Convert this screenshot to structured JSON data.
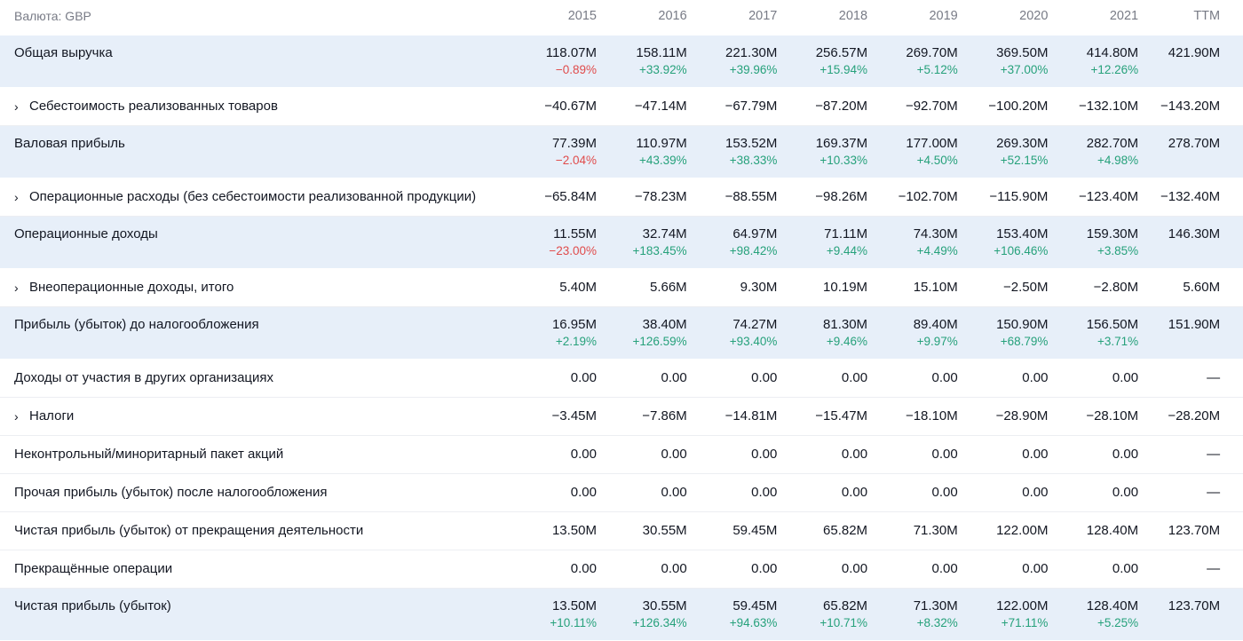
{
  "header": {
    "currency_label": "Валюта: GBP",
    "years": [
      "2015",
      "2016",
      "2017",
      "2018",
      "2019",
      "2020",
      "2021",
      "TTM"
    ]
  },
  "rows": [
    {
      "label": "Общая выручка",
      "expandable": false,
      "shaded": true,
      "values": [
        "118.07M",
        "158.11M",
        "221.30M",
        "256.57M",
        "269.70M",
        "369.50M",
        "414.80M",
        "421.90M"
      ],
      "changes": [
        "−0.89%",
        "+33.92%",
        "+39.96%",
        "+15.94%",
        "+5.12%",
        "+37.00%",
        "+12.26%",
        ""
      ]
    },
    {
      "label": "Себестоимость реализованных товаров",
      "expandable": true,
      "shaded": false,
      "values": [
        "−40.67M",
        "−47.14M",
        "−67.79M",
        "−87.20M",
        "−92.70M",
        "−100.20M",
        "−132.10M",
        "−143.20M"
      ],
      "changes": null
    },
    {
      "label": "Валовая прибыль",
      "expandable": false,
      "shaded": true,
      "values": [
        "77.39M",
        "110.97M",
        "153.52M",
        "169.37M",
        "177.00M",
        "269.30M",
        "282.70M",
        "278.70M"
      ],
      "changes": [
        "−2.04%",
        "+43.39%",
        "+38.33%",
        "+10.33%",
        "+4.50%",
        "+52.15%",
        "+4.98%",
        ""
      ]
    },
    {
      "label": "Операционные расходы (без себестоимости реализованной продукции)",
      "expandable": true,
      "shaded": false,
      "values": [
        "−65.84M",
        "−78.23M",
        "−88.55M",
        "−98.26M",
        "−102.70M",
        "−115.90M",
        "−123.40M",
        "−132.40M"
      ],
      "changes": null
    },
    {
      "label": "Операционные доходы",
      "expandable": false,
      "shaded": true,
      "values": [
        "11.55M",
        "32.74M",
        "64.97M",
        "71.11M",
        "74.30M",
        "153.40M",
        "159.30M",
        "146.30M"
      ],
      "changes": [
        "−23.00%",
        "+183.45%",
        "+98.42%",
        "+9.44%",
        "+4.49%",
        "+106.46%",
        "+3.85%",
        ""
      ]
    },
    {
      "label": "Внеоперационные доходы, итого",
      "expandable": true,
      "shaded": false,
      "values": [
        "5.40M",
        "5.66M",
        "9.30M",
        "10.19M",
        "15.10M",
        "−2.50M",
        "−2.80M",
        "5.60M"
      ],
      "changes": null
    },
    {
      "label": "Прибыль (убыток) до налогообложения",
      "expandable": false,
      "shaded": true,
      "values": [
        "16.95M",
        "38.40M",
        "74.27M",
        "81.30M",
        "89.40M",
        "150.90M",
        "156.50M",
        "151.90M"
      ],
      "changes": [
        "+2.19%",
        "+126.59%",
        "+93.40%",
        "+9.46%",
        "+9.97%",
        "+68.79%",
        "+3.71%",
        ""
      ]
    },
    {
      "label": "Доходы от участия в других организациях",
      "expandable": false,
      "shaded": false,
      "values": [
        "0.00",
        "0.00",
        "0.00",
        "0.00",
        "0.00",
        "0.00",
        "0.00",
        "—"
      ],
      "changes": null
    },
    {
      "label": "Налоги",
      "expandable": true,
      "shaded": false,
      "values": [
        "−3.45M",
        "−7.86M",
        "−14.81M",
        "−15.47M",
        "−18.10M",
        "−28.90M",
        "−28.10M",
        "−28.20M"
      ],
      "changes": null
    },
    {
      "label": "Неконтрольный/миноритарный пакет акций",
      "expandable": false,
      "shaded": false,
      "values": [
        "0.00",
        "0.00",
        "0.00",
        "0.00",
        "0.00",
        "0.00",
        "0.00",
        "—"
      ],
      "changes": null
    },
    {
      "label": "Прочая прибыль (убыток) после налогообложения",
      "expandable": false,
      "shaded": false,
      "values": [
        "0.00",
        "0.00",
        "0.00",
        "0.00",
        "0.00",
        "0.00",
        "0.00",
        "—"
      ],
      "changes": null
    },
    {
      "label": "Чистая прибыль (убыток) от прекращения деятельности",
      "expandable": false,
      "shaded": false,
      "values": [
        "13.50M",
        "30.55M",
        "59.45M",
        "65.82M",
        "71.30M",
        "122.00M",
        "128.40M",
        "123.70M"
      ],
      "changes": null
    },
    {
      "label": "Прекращённые операции",
      "expandable": false,
      "shaded": false,
      "values": [
        "0.00",
        "0.00",
        "0.00",
        "0.00",
        "0.00",
        "0.00",
        "0.00",
        "—"
      ],
      "changes": null
    },
    {
      "label": "Чистая прибыль (убыток)",
      "expandable": false,
      "shaded": true,
      "values": [
        "13.50M",
        "30.55M",
        "59.45M",
        "65.82M",
        "71.30M",
        "122.00M",
        "128.40M",
        "123.70M"
      ],
      "changes": [
        "+10.11%",
        "+126.34%",
        "+94.63%",
        "+10.71%",
        "+8.32%",
        "+71.11%",
        "+5.25%",
        ""
      ]
    }
  ],
  "icons": {
    "expand": "chevron-right-icon"
  },
  "colors": {
    "positive": "#26a17b",
    "negative": "#e04b4b",
    "shaded_row": "#e7eff9",
    "muted_text": "#787b86"
  }
}
